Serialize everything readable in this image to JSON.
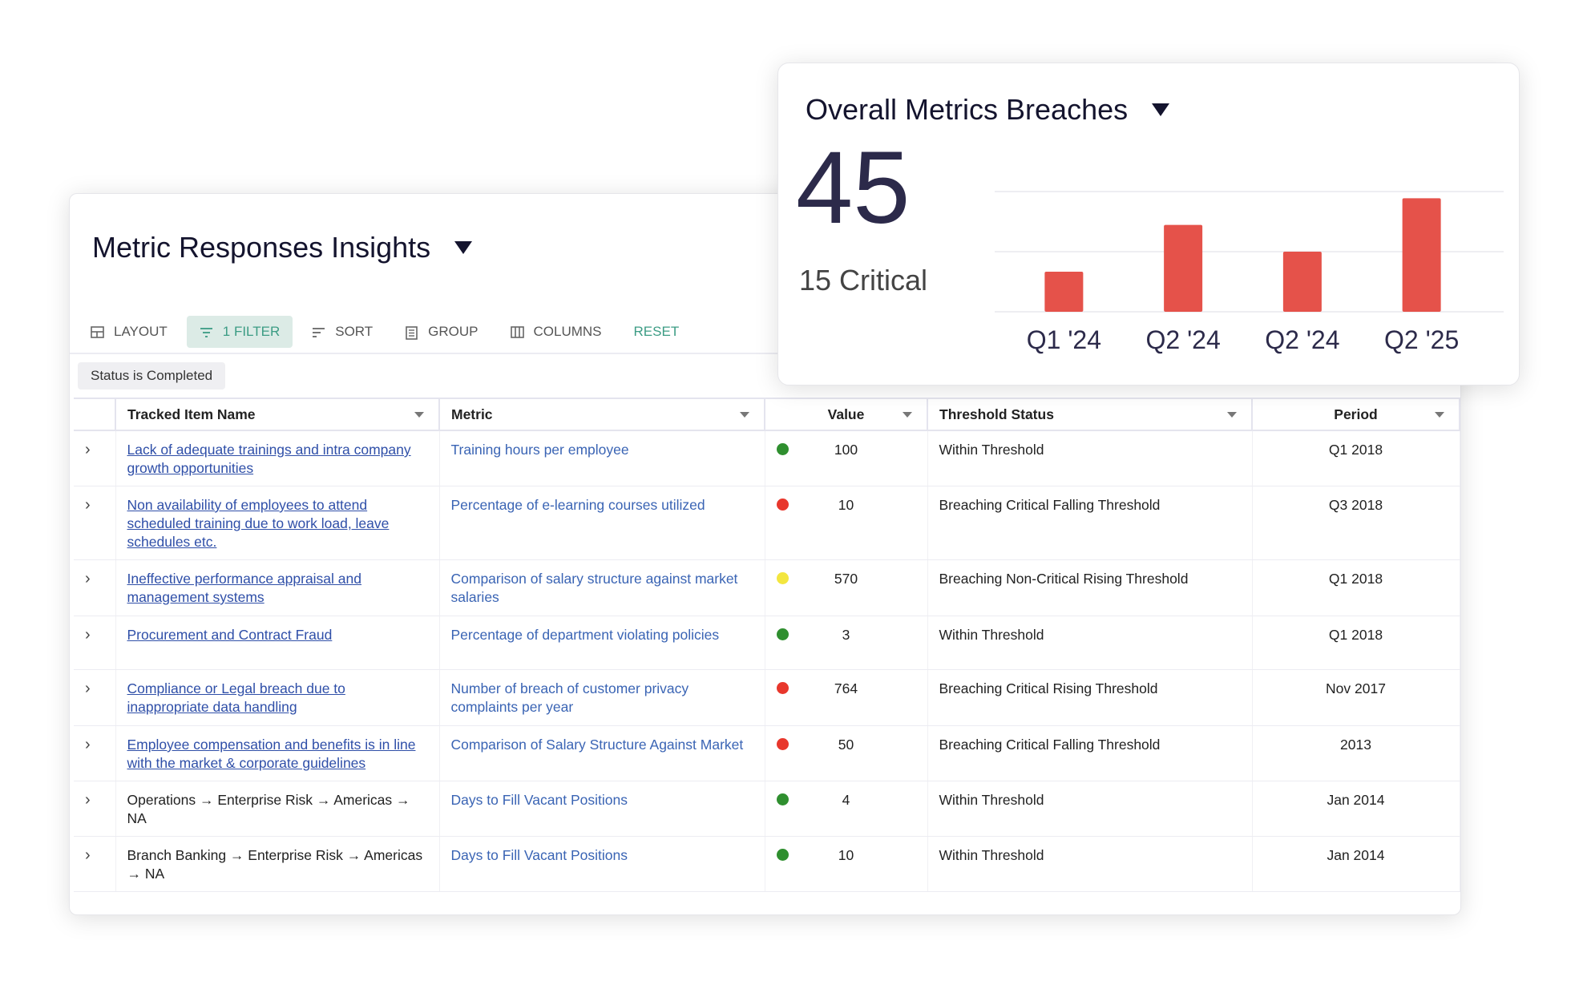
{
  "insights": {
    "title": "Metric Responses Insights",
    "toolbar": [
      {
        "label": "LAYOUT",
        "icon": "layout-icon"
      },
      {
        "label": "1 FILTER",
        "icon": "filter-icon",
        "active": true
      },
      {
        "label": "SORT",
        "icon": "sort-icon"
      },
      {
        "label": "GROUP",
        "icon": "group-icon"
      },
      {
        "label": "COLUMNS",
        "icon": "columns-icon"
      },
      {
        "label": "RESET"
      }
    ],
    "filter_chip": "Status is Completed",
    "columns": [
      "Tracked Item Name",
      "Metric",
      "Value",
      "Threshold Status",
      "Period"
    ],
    "rows": [
      {
        "name": "Lack of adequate trainings and intra company growth opportunities",
        "link": true,
        "metric": "Training hours per employee",
        "status": "green",
        "value": "100",
        "threshold": "Within Threshold",
        "period": "Q1 2018"
      },
      {
        "name": "Non availability of employees to attend scheduled training due to work load, leave schedules etc.",
        "link": true,
        "metric": "Percentage of e-learning courses utilized",
        "status": "red",
        "value": "10",
        "threshold": "Breaching Critical Falling Threshold",
        "period": "Q3 2018"
      },
      {
        "name": "Ineffective performance appraisal and management systems",
        "link": true,
        "metric": "Comparison of salary structure against market salaries",
        "status": "yellow",
        "value": "570",
        "threshold": "Breaching Non-Critical Rising Threshold",
        "period": "Q1 2018"
      },
      {
        "name": "Procurement and Contract Fraud",
        "link": true,
        "metric": "Percentage of department violating policies",
        "status": "green",
        "value": "3",
        "threshold": "Within Threshold",
        "period": "Q1 2018"
      },
      {
        "name": "Compliance or Legal breach due to inappropriate data handling",
        "link": true,
        "metric": "Number of breach of customer privacy complaints per year",
        "status": "red",
        "value": "764",
        "threshold": "Breaching Critical Rising Threshold",
        "period": "Nov 2017"
      },
      {
        "name": "Employee compensation and benefits is in line with the market & corporate guidelines",
        "link": true,
        "metric": "Comparison of Salary Structure Against Market",
        "status": "red",
        "value": "50",
        "threshold": "Breaching Critical Falling Threshold",
        "period": "2013"
      },
      {
        "name": "Operations → Enterprise Risk → Americas → NA",
        "link": false,
        "metric": "Days to Fill Vacant Positions",
        "status": "green",
        "value": "4",
        "threshold": "Within Threshold",
        "period": "Jan 2014"
      },
      {
        "name": "Branch Banking → Enterprise Risk → Americas → NA",
        "link": false,
        "metric": "Days to Fill Vacant Positions",
        "status": "green",
        "value": "10",
        "threshold": "Within Threshold",
        "period": "Jan 2014"
      }
    ]
  },
  "status_colors": {
    "green": "#2f8f2f",
    "red": "#e8372c",
    "yellow": "#f3e63f"
  },
  "breaches": {
    "title": "Overall Metrics Breaches",
    "total": "45",
    "critical": "15 Critical"
  },
  "chart_data": {
    "type": "bar",
    "categories": [
      "Q1 '24",
      "Q2 '24",
      "Q2 '24",
      "Q2 '25"
    ],
    "values": [
      6,
      13,
      9,
      17
    ],
    "ylim": [
      0,
      18
    ],
    "grid": true,
    "bar_color": "#e5524a"
  }
}
